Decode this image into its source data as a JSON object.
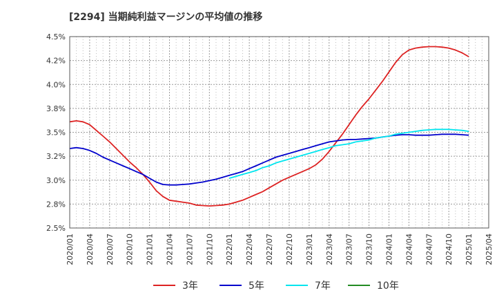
{
  "chart_data": {
    "type": "line",
    "title": "[2294]  当期純利益マージンの平均値の推移",
    "xlabel": "",
    "ylabel": "",
    "ylim": [
      2.5,
      4.5
    ],
    "grid": true,
    "legend_placement": "bottom",
    "x_ticks": [
      "2020/01",
      "2020/04",
      "2020/07",
      "2020/10",
      "2021/01",
      "2021/04",
      "2021/07",
      "2021/10",
      "2022/01",
      "2022/04",
      "2022/07",
      "2022/10",
      "2023/01",
      "2023/04",
      "2023/07",
      "2023/10",
      "2024/01",
      "2024/04",
      "2024/07",
      "2024/10",
      "2025/01",
      "2025/04"
    ],
    "y_ticks": [
      "2.5%",
      "2.8%",
      "3.0%",
      "3.2%",
      "3.5%",
      "3.8%",
      "4.0%",
      "4.2%",
      "4.5%"
    ],
    "y_tick_values": [
      2.5,
      2.75,
      3.0,
      3.25,
      3.5,
      3.75,
      4.0,
      4.25,
      4.5
    ],
    "series": [
      {
        "name": "3年",
        "color": "#dd2222",
        "x": [
          "2020/01",
          "2020/02",
          "2020/03",
          "2020/04",
          "2020/05",
          "2020/06",
          "2020/07",
          "2020/08",
          "2020/09",
          "2020/10",
          "2020/11",
          "2020/12",
          "2021/01",
          "2021/02",
          "2021/03",
          "2021/04",
          "2021/05",
          "2021/06",
          "2021/07",
          "2021/08",
          "2021/09",
          "2021/10",
          "2021/11",
          "2021/12",
          "2022/01",
          "2022/02",
          "2022/03",
          "2022/04",
          "2022/05",
          "2022/06",
          "2022/07",
          "2022/08",
          "2022/09",
          "2022/10",
          "2022/11",
          "2022/12",
          "2023/01",
          "2023/02",
          "2023/03",
          "2023/04",
          "2023/05",
          "2023/06",
          "2023/07",
          "2023/08",
          "2023/09",
          "2023/10",
          "2023/11",
          "2023/12",
          "2024/01",
          "2024/02",
          "2024/03",
          "2024/04",
          "2024/05",
          "2024/06",
          "2024/07",
          "2024/08",
          "2024/09",
          "2024/10",
          "2024/11",
          "2024/12",
          "2025/01"
        ],
        "values": [
          3.61,
          3.62,
          3.61,
          3.58,
          3.52,
          3.46,
          3.4,
          3.33,
          3.26,
          3.19,
          3.13,
          3.06,
          2.98,
          2.89,
          2.83,
          2.79,
          2.78,
          2.77,
          2.76,
          2.74,
          2.735,
          2.73,
          2.735,
          2.74,
          2.75,
          2.77,
          2.79,
          2.82,
          2.85,
          2.88,
          2.92,
          2.96,
          3.0,
          3.03,
          3.06,
          3.09,
          3.12,
          3.16,
          3.22,
          3.3,
          3.39,
          3.48,
          3.58,
          3.68,
          3.77,
          3.85,
          3.94,
          4.03,
          4.13,
          4.23,
          4.31,
          4.36,
          4.38,
          4.39,
          4.395,
          4.395,
          4.39,
          4.38,
          4.36,
          4.33,
          4.29
        ]
      },
      {
        "name": "5年",
        "color": "#0000cc",
        "x": [
          "2020/01",
          "2020/02",
          "2020/03",
          "2020/04",
          "2020/05",
          "2020/06",
          "2020/07",
          "2020/08",
          "2020/09",
          "2020/10",
          "2020/11",
          "2020/12",
          "2021/01",
          "2021/02",
          "2021/03",
          "2021/04",
          "2021/05",
          "2021/06",
          "2021/07",
          "2021/08",
          "2021/09",
          "2021/10",
          "2021/11",
          "2021/12",
          "2022/01",
          "2022/02",
          "2022/03",
          "2022/04",
          "2022/05",
          "2022/06",
          "2022/07",
          "2022/08",
          "2022/09",
          "2022/10",
          "2022/11",
          "2022/12",
          "2023/01",
          "2023/02",
          "2023/03",
          "2023/04",
          "2023/05",
          "2023/06",
          "2023/07",
          "2023/08",
          "2023/09",
          "2023/10",
          "2023/11",
          "2023/12",
          "2024/01",
          "2024/02",
          "2024/03",
          "2024/04",
          "2024/05",
          "2024/06",
          "2024/07",
          "2024/08",
          "2024/09",
          "2024/10",
          "2024/11",
          "2024/12",
          "2025/01"
        ],
        "values": [
          3.33,
          3.34,
          3.33,
          3.31,
          3.28,
          3.24,
          3.21,
          3.18,
          3.15,
          3.12,
          3.09,
          3.06,
          3.02,
          2.98,
          2.955,
          2.95,
          2.95,
          2.955,
          2.96,
          2.97,
          2.98,
          2.995,
          3.01,
          3.03,
          3.05,
          3.07,
          3.09,
          3.12,
          3.15,
          3.18,
          3.21,
          3.24,
          3.26,
          3.28,
          3.3,
          3.32,
          3.34,
          3.36,
          3.38,
          3.4,
          3.41,
          3.42,
          3.425,
          3.425,
          3.43,
          3.435,
          3.44,
          3.45,
          3.46,
          3.47,
          3.475,
          3.475,
          3.47,
          3.47,
          3.47,
          3.475,
          3.48,
          3.48,
          3.48,
          3.475,
          3.47
        ]
      },
      {
        "name": "7年",
        "color": "#00e5ee",
        "x": [
          "2022/01",
          "2022/02",
          "2022/03",
          "2022/04",
          "2022/05",
          "2022/06",
          "2022/07",
          "2022/08",
          "2022/09",
          "2022/10",
          "2022/11",
          "2022/12",
          "2023/01",
          "2023/02",
          "2023/03",
          "2023/04",
          "2023/05",
          "2023/06",
          "2023/07",
          "2023/08",
          "2023/09",
          "2023/10",
          "2023/11",
          "2023/12",
          "2024/01",
          "2024/02",
          "2024/03",
          "2024/04",
          "2024/05",
          "2024/06",
          "2024/07",
          "2024/08",
          "2024/09",
          "2024/10",
          "2024/11",
          "2024/12",
          "2025/01"
        ],
        "values": [
          3.02,
          3.04,
          3.06,
          3.08,
          3.1,
          3.13,
          3.15,
          3.18,
          3.2,
          3.22,
          3.24,
          3.26,
          3.28,
          3.3,
          3.32,
          3.34,
          3.36,
          3.37,
          3.38,
          3.4,
          3.41,
          3.42,
          3.44,
          3.45,
          3.46,
          3.48,
          3.49,
          3.5,
          3.51,
          3.52,
          3.525,
          3.53,
          3.53,
          3.53,
          3.525,
          3.52,
          3.51
        ]
      },
      {
        "name": "10年",
        "color": "#228b22",
        "x": [],
        "values": []
      }
    ]
  }
}
